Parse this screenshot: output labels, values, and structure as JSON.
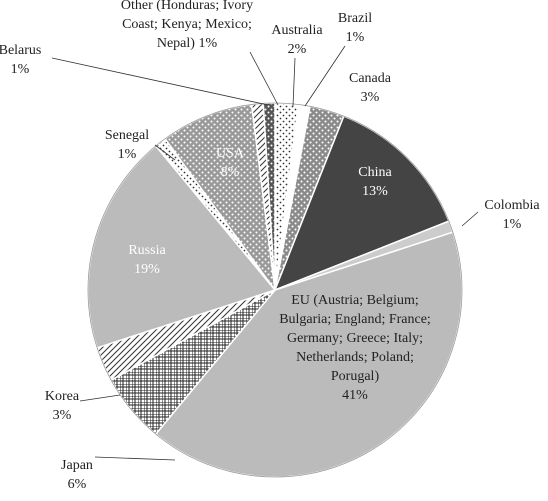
{
  "chart_data": {
    "type": "pie",
    "categories": [
      "Australia",
      "Brazil",
      "Canada",
      "China",
      "Colombia",
      "EU (Austria; Belgium; Bulgaria; England; France; Germany; Greece; Italy; Netherlands; Poland; Porugal)",
      "Japan",
      "Korea",
      "Russia",
      "Senegal",
      "USA",
      "Belarus",
      "Other (Honduras; Ivory Coast; Kenya; Mexico; Nepal)"
    ],
    "values": [
      2,
      1,
      3,
      13,
      1,
      41,
      6,
      3,
      19,
      1,
      8,
      1,
      1
    ],
    "value_labels": [
      "2%",
      "1%",
      "3%",
      "13%",
      "1%",
      "41%",
      "6%",
      "3%",
      "19%",
      "1%",
      "8%",
      "1%",
      "1%"
    ],
    "colors": [
      "#ffffff",
      "#ffffff",
      "#8a8a8a",
      "#444444",
      "#cccccc",
      "#bbbbbb",
      "#ffffff",
      "#ffffff",
      "#bbbbbb",
      "#ffffff",
      "#999999",
      "#ffffff",
      "#555555"
    ],
    "patterns": [
      "dots",
      "none",
      "light-dots",
      "none",
      "none",
      "none",
      "crosshatch",
      "stripes",
      "none",
      "dots",
      "light-dots",
      "stripes",
      "light-dots"
    ]
  }
}
